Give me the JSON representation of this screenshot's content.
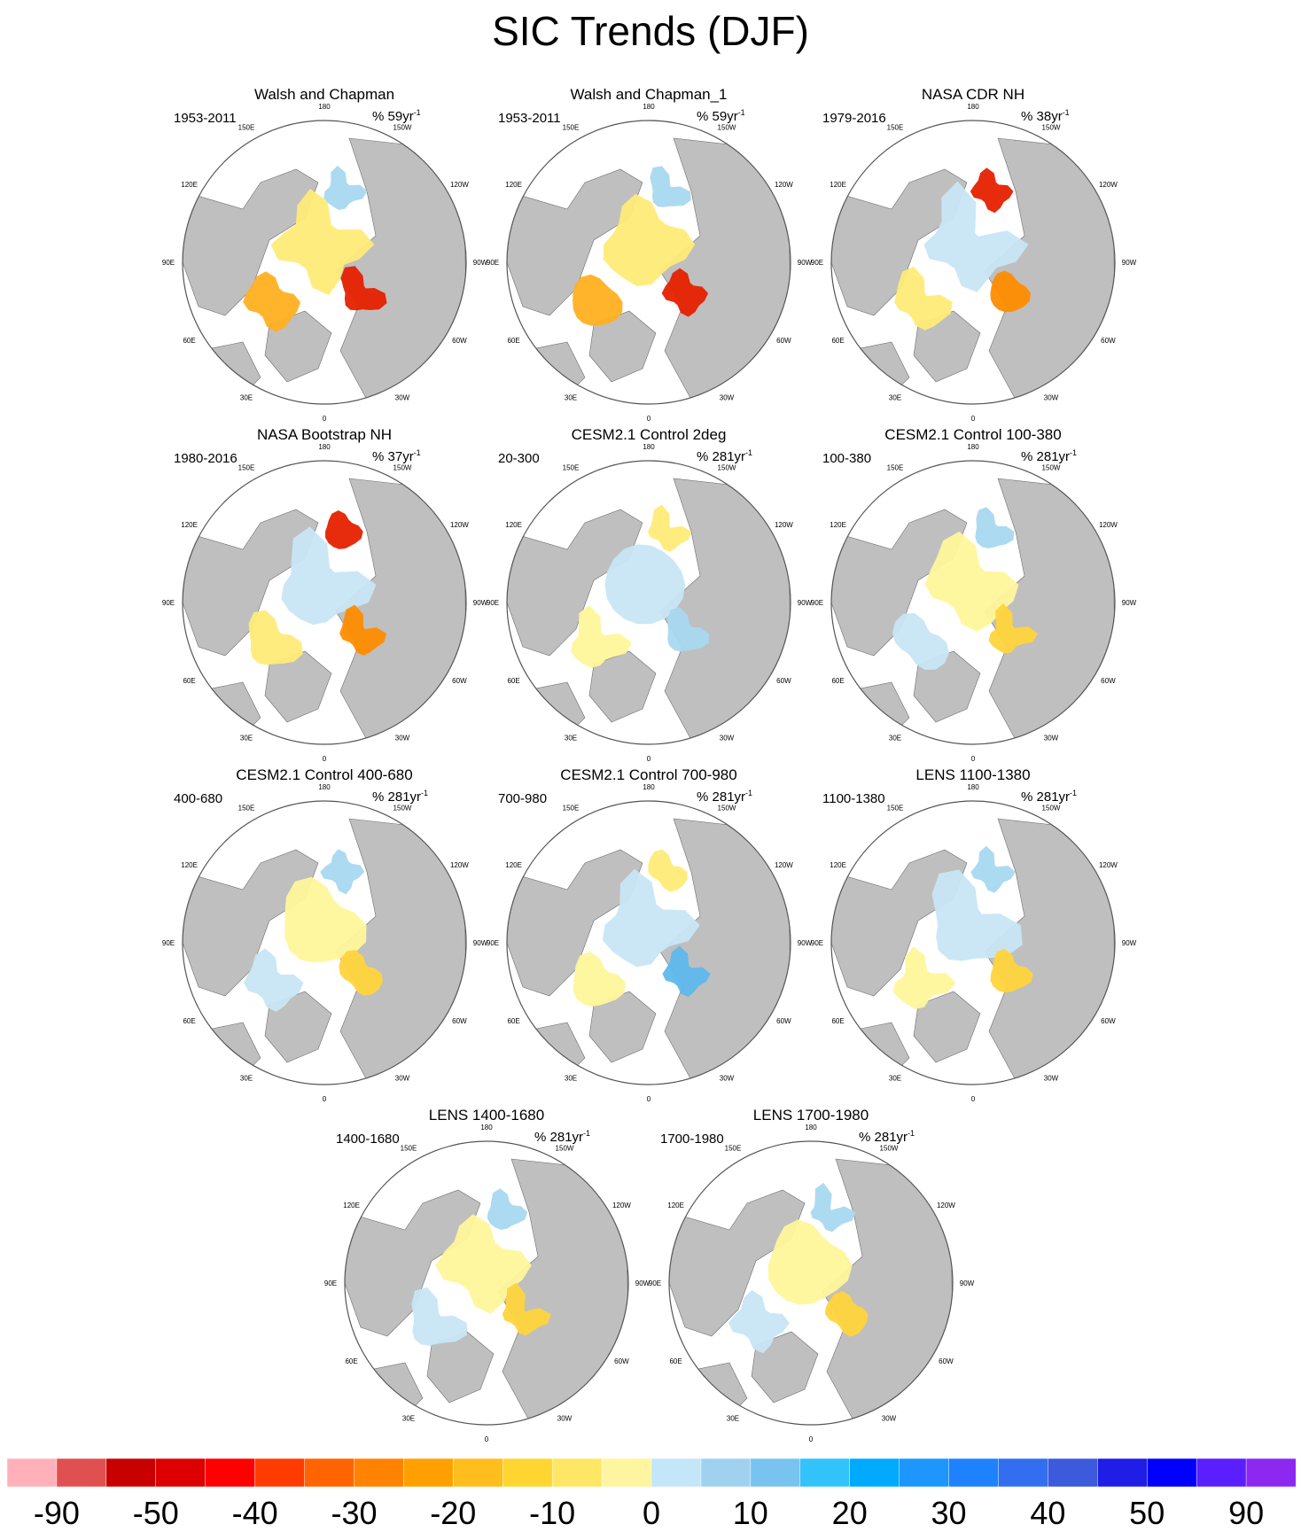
{
  "chart_data": {
    "type": "polar stereographic map panels (filled contour)",
    "title": "SIC Trends (DJF)",
    "units": "% 59yr-1 / 38yr-1 / 37yr-1 / 281yr-1",
    "legend": "bottom",
    "lon_labels": [
      "180",
      "150W",
      "120W",
      "90W",
      "60W",
      "30W",
      "0",
      "30E",
      "60E",
      "90E",
      "120E",
      "150E"
    ],
    "panels": [
      {
        "title": "Walsh and Chapman",
        "period": "1953-2011",
        "unit_value": "59",
        "unit_prefix": "%",
        "unit_suffix": "yr",
        "unit_exp": "-1",
        "dominant": "decline",
        "colors": [
          "#ffeb78",
          "#ffb020",
          "#e62000",
          "#a8d8f0"
        ]
      },
      {
        "title": "Walsh and Chapman_1",
        "period": "1953-2011",
        "unit_value": "59",
        "unit_prefix": "%",
        "unit_suffix": "yr",
        "unit_exp": "-1",
        "dominant": "decline",
        "colors": [
          "#ffeb78",
          "#ffb020",
          "#e62000",
          "#a8d8f0"
        ]
      },
      {
        "title": "NASA CDR NH",
        "period": "1979-2016",
        "unit_value": "38",
        "unit_prefix": "%",
        "unit_suffix": "yr",
        "unit_exp": "-1",
        "dominant": "mixed",
        "colors": [
          "#c8e6f5",
          "#ffeb78",
          "#ff8c00",
          "#e62000"
        ]
      },
      {
        "title": "NASA Bootstrap NH",
        "period": "1980-2016",
        "unit_value": "37",
        "unit_prefix": "%",
        "unit_suffix": "yr",
        "unit_exp": "-1",
        "dominant": "mixed",
        "colors": [
          "#c8e6f5",
          "#ffeb78",
          "#ff8c00",
          "#e62000"
        ]
      },
      {
        "title": "CESM2.1 Control 2deg",
        "period": "20-300",
        "unit_value": "281",
        "unit_prefix": "%",
        "unit_suffix": "yr",
        "unit_exp": "-1",
        "dominant": "weak",
        "colors": [
          "#c8e6f5",
          "#fff59b",
          "#a8d8f0",
          "#ffeb78"
        ]
      },
      {
        "title": "CESM2.1 Control 100-380",
        "period": "100-380",
        "unit_value": "281",
        "unit_prefix": "%",
        "unit_suffix": "yr",
        "unit_exp": "-1",
        "dominant": "weak",
        "colors": [
          "#fff59b",
          "#c8e6f5",
          "#ffd43b",
          "#a8d8f0"
        ]
      },
      {
        "title": "CESM2.1 Control 400-680",
        "period": "400-680",
        "unit_value": "281",
        "unit_prefix": "%",
        "unit_suffix": "yr",
        "unit_exp": "-1",
        "dominant": "weak",
        "colors": [
          "#fff59b",
          "#c8e6f5",
          "#ffd43b",
          "#a8d8f0"
        ]
      },
      {
        "title": "CESM2.1 Control 700-980",
        "period": "700-980",
        "unit_value": "281",
        "unit_prefix": "%",
        "unit_suffix": "yr",
        "unit_exp": "-1",
        "dominant": "weak",
        "colors": [
          "#c8e6f5",
          "#fff59b",
          "#5eb8ec",
          "#ffeb78"
        ]
      },
      {
        "title": "LENS 1100-1380",
        "period": "1100-1380",
        "unit_value": "281",
        "unit_prefix": "%",
        "unit_suffix": "yr",
        "unit_exp": "-1",
        "dominant": "weak",
        "colors": [
          "#c8e6f5",
          "#fff59b",
          "#ffd43b",
          "#a8d8f0"
        ]
      },
      {
        "title": "LENS 1400-1680",
        "period": "1400-1680",
        "unit_value": "281",
        "unit_prefix": "%",
        "unit_suffix": "yr",
        "unit_exp": "-1",
        "dominant": "weak",
        "colors": [
          "#fff59b",
          "#c8e6f5",
          "#ffd43b",
          "#a8d8f0"
        ]
      },
      {
        "title": "LENS 1700-1980",
        "period": "1700-1980",
        "unit_value": "281",
        "unit_prefix": "%",
        "unit_suffix": "yr",
        "unit_exp": "-1",
        "dominant": "weak",
        "colors": [
          "#fff59b",
          "#c8e6f5",
          "#ffd43b",
          "#a8d8f0"
        ]
      }
    ],
    "colorbar": {
      "colors": [
        "#ffb0b8",
        "#e05050",
        "#c80000",
        "#dc0000",
        "#ff0000",
        "#ff3c00",
        "#ff6400",
        "#ff8200",
        "#ffa000",
        "#ffbe1e",
        "#ffd532",
        "#ffe664",
        "#fff5a0",
        "#c3e6f8",
        "#a0d2f0",
        "#78c3f0",
        "#32c3fa",
        "#00aaff",
        "#1e96ff",
        "#1e82ff",
        "#326ef0",
        "#3c5adc",
        "#1e1ee6",
        "#0000ff",
        "#5a1eff",
        "#8c28f0"
      ],
      "tick_labels": [
        "-90",
        "-50",
        "-40",
        "-30",
        "-20",
        "-10",
        "0",
        "10",
        "20",
        "30",
        "40",
        "50",
        "90"
      ]
    }
  }
}
